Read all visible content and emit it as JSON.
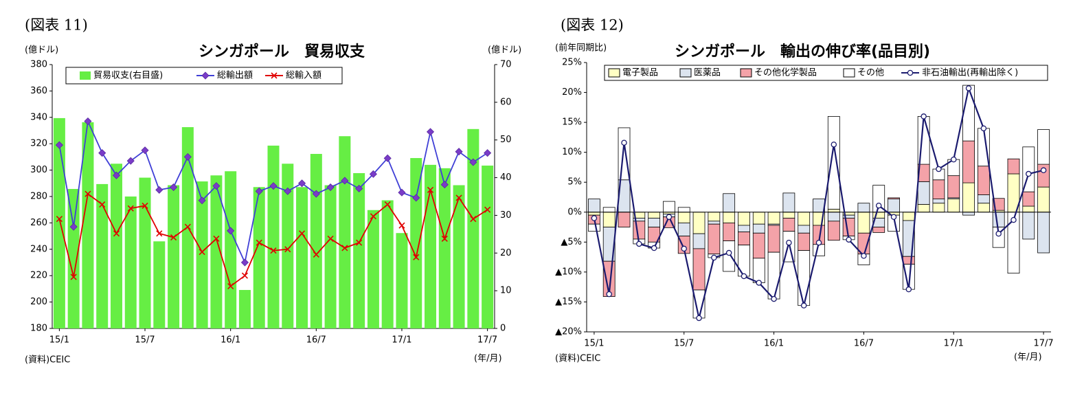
{
  "chart_data": [
    {
      "type": "combo",
      "figure_label": "(図表 11)",
      "title": "シンガポール　貿易収支",
      "y_label": "(億ドル)",
      "y2_label": "(億ドル)",
      "source": "(資料)CEIC",
      "x_unit": "(年/月)",
      "categories": [
        "15/1",
        null,
        null,
        null,
        null,
        null,
        "15/7",
        null,
        null,
        null,
        null,
        null,
        "16/1",
        null,
        null,
        null,
        null,
        null,
        "16/7",
        null,
        null,
        null,
        null,
        null,
        "17/1",
        null,
        null,
        null,
        null,
        null,
        "17/7"
      ],
      "ylim": [
        180,
        380
      ],
      "yticks": [
        180,
        200,
        220,
        240,
        260,
        280,
        300,
        320,
        340,
        360,
        380
      ],
      "y2lim": [
        0,
        70
      ],
      "y2ticks": [
        0,
        10,
        20,
        30,
        40,
        50,
        60,
        70
      ],
      "series": [
        {
          "name": "貿易収支(右目盛)",
          "type": "bar",
          "axis": "y2",
          "color": "#66ee44",
          "values": [
            55.8,
            37,
            54.7,
            38.3,
            43.7,
            35,
            40,
            23.1,
            38,
            53.4,
            39,
            40.6,
            41.7,
            10.2,
            37.5,
            48.5,
            43.7,
            37.5,
            46.3,
            38,
            51,
            41.2,
            31.4,
            34,
            25.3,
            45.2,
            43.4,
            42.5,
            38,
            52.9,
            43.2
          ]
        },
        {
          "name": "総輸出額",
          "type": "line",
          "marker": "diamond",
          "color": "#3f3fd6",
          "values": [
            319,
            257,
            337,
            313,
            296,
            307,
            315,
            285,
            287,
            310,
            277,
            288,
            254,
            230,
            284,
            288,
            284,
            290,
            282,
            287,
            292,
            286,
            297,
            309,
            283,
            279,
            329,
            289,
            314,
            306,
            313
          ]
        },
        {
          "name": "総輸入額",
          "type": "line",
          "marker": "x",
          "color": "#e00000",
          "values": [
            263,
            219,
            282,
            274,
            252,
            271,
            273,
            252,
            249,
            257,
            238,
            248,
            212,
            220,
            245,
            239,
            240,
            252,
            236,
            248,
            241,
            245,
            265,
            274,
            258,
            234,
            285,
            248,
            279,
            263,
            270
          ]
        }
      ]
    },
    {
      "type": "combo",
      "stacked": true,
      "figure_label": "(図表 12)",
      "title": "シンガポール　輸出の伸び率(品目別)",
      "y_label": "(前年同期比)",
      "source": "(資料)CEIC",
      "x_unit": "(年/月)",
      "categories": [
        "15/1",
        null,
        null,
        null,
        null,
        null,
        "15/7",
        null,
        null,
        null,
        null,
        null,
        "16/1",
        null,
        null,
        null,
        null,
        null,
        "16/7",
        null,
        null,
        null,
        null,
        null,
        "17/1",
        null,
        null,
        null,
        null,
        null,
        "17/7"
      ],
      "ylim": [
        -20,
        25
      ],
      "yticks": [
        {
          "value": 25,
          "label": "25%"
        },
        {
          "value": 20,
          "label": "20%"
        },
        {
          "value": 15,
          "label": "15%"
        },
        {
          "value": 10,
          "label": "10%"
        },
        {
          "value": 5,
          "label": "5%"
        },
        {
          "value": 0,
          "label": "0%"
        },
        {
          "value": -5,
          "label": "▲5%"
        },
        {
          "value": -10,
          "label": "▲10%"
        },
        {
          "value": -15,
          "label": "▲15%"
        },
        {
          "value": -20,
          "label": "▲20%"
        }
      ],
      "series": [
        {
          "name": "電子製品",
          "type": "bar",
          "color": "#ffffc4",
          "values": [
            -0.5,
            -2.5,
            0,
            -1.0,
            -1.0,
            -0.3,
            -1.8,
            -3.6,
            -1.5,
            -1.8,
            -2.2,
            -2.0,
            -2.0,
            -1.0,
            -2.2,
            -2.2,
            0.5,
            -0.5,
            -3.5,
            -1.0,
            -0.5,
            -1.4,
            1.3,
            1.5,
            2.2,
            4.9,
            1.5,
            0.3,
            6.4,
            1.0,
            4.2
          ]
        },
        {
          "name": "医薬品",
          "type": "bar",
          "color": "#dce4ef",
          "values": [
            2.2,
            -5.7,
            5.4,
            -0.5,
            -1.5,
            -0.5,
            -2.2,
            -2.5,
            -0.5,
            3.1,
            -1.1,
            -1.5,
            -0.2,
            3.2,
            -1.3,
            2.2,
            -1.5,
            -0.5,
            1.5,
            -1.5,
            2.2,
            -6.0,
            3.8,
            0.7,
            0.2,
            -0.5,
            1.4,
            -2.5,
            0,
            -4.5,
            -6.8
          ]
        },
        {
          "name": "その他化学製品",
          "type": "bar",
          "color": "#f4a2a8",
          "values": [
            -1.5,
            -5.9,
            -2.5,
            -3.0,
            -2.5,
            -1.8,
            -2.9,
            -6.9,
            -5.0,
            -3.0,
            -2.2,
            -4.2,
            -4.5,
            -2.2,
            -2.9,
            -3.2,
            -3.2,
            -3.0,
            -3.5,
            -0.9,
            0.2,
            -1.3,
            2.9,
            3.2,
            3.7,
            7.0,
            4.8,
            2.0,
            2.5,
            2.4,
            3.8
          ]
        },
        {
          "name": "その他",
          "type": "bar",
          "color": "#ffffff",
          "values": [
            -1.2,
            0.8,
            8.7,
            -0.8,
            -1.0,
            1.8,
            0.8,
            -4.7,
            -0.6,
            -5.1,
            -5.2,
            -4.1,
            -7.8,
            -5.1,
            -9.2,
            -1.9,
            15.5,
            -0.6,
            -1.8,
            4.5,
            -2.7,
            -4.2,
            8.0,
            1.8,
            2.7,
            9.3,
            6.3,
            -3.4,
            -10.2,
            7.5,
            5.8
          ]
        },
        {
          "name": "非石油輸出(再輸出除く)",
          "type": "line",
          "marker": "circle",
          "color": "#1a1a6e",
          "values": [
            -1.0,
            -13.7,
            11.6,
            -5.3,
            -6.0,
            -0.8,
            -6.1,
            -17.7,
            -7.6,
            -6.8,
            -10.7,
            -11.8,
            -14.5,
            -5.1,
            -15.6,
            -5.1,
            11.3,
            -4.6,
            -7.3,
            1.1,
            -0.8,
            -12.9,
            16.0,
            7.2,
            8.8,
            20.7,
            14.0,
            -3.6,
            -1.3,
            6.4,
            7.0
          ]
        }
      ]
    }
  ]
}
